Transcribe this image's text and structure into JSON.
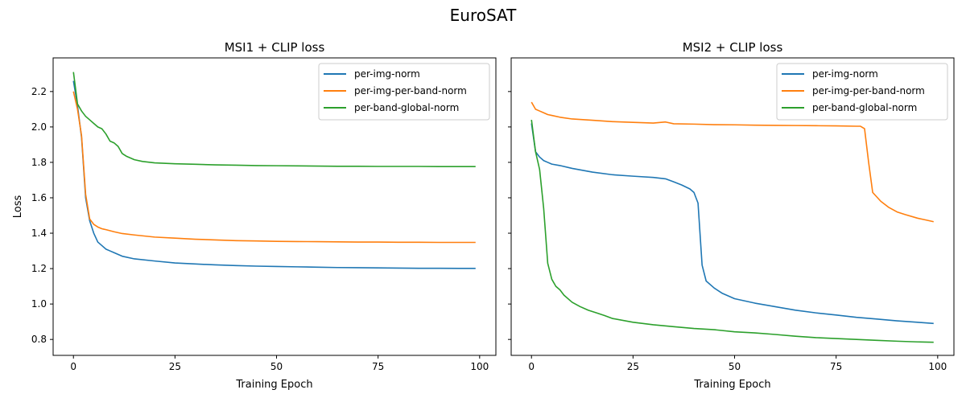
{
  "figure": {
    "suptitle": "EuroSAT"
  },
  "chart_data": [
    {
      "type": "line",
      "title": "MSI1 + CLIP loss",
      "xlabel": "Training Epoch",
      "ylabel": "Loss",
      "xlim": [
        -5,
        104
      ],
      "ylim": [
        0.71,
        2.39
      ],
      "xticks": [
        0,
        25,
        50,
        75,
        100
      ],
      "yticks": [
        0.8,
        1.0,
        1.2,
        1.4,
        1.6,
        1.8,
        2.0,
        2.2
      ],
      "grid": false,
      "legend": "top-right",
      "series": [
        {
          "name": "per-img-norm",
          "color": "#1f77b4",
          "points": [
            [
              0,
              2.26
            ],
            [
              1,
              2.12
            ],
            [
              2,
              1.94
            ],
            [
              3,
              1.6
            ],
            [
              4,
              1.47
            ],
            [
              5,
              1.4
            ],
            [
              6,
              1.35
            ],
            [
              7,
              1.33
            ],
            [
              8,
              1.31
            ],
            [
              9,
              1.3
            ],
            [
              10,
              1.29
            ],
            [
              12,
              1.27
            ],
            [
              15,
              1.255
            ],
            [
              20,
              1.243
            ],
            [
              25,
              1.232
            ],
            [
              30,
              1.226
            ],
            [
              35,
              1.221
            ],
            [
              40,
              1.217
            ],
            [
              45,
              1.214
            ],
            [
              50,
              1.212
            ],
            [
              55,
              1.21
            ],
            [
              60,
              1.208
            ],
            [
              65,
              1.206
            ],
            [
              70,
              1.205
            ],
            [
              75,
              1.204
            ],
            [
              80,
              1.203
            ],
            [
              85,
              1.202
            ],
            [
              90,
              1.202
            ],
            [
              95,
              1.201
            ],
            [
              99,
              1.201
            ]
          ]
        },
        {
          "name": "per-img-per-band-norm",
          "color": "#ff7f0e",
          "points": [
            [
              0,
              2.2
            ],
            [
              1,
              2.1
            ],
            [
              2,
              1.95
            ],
            [
              3,
              1.62
            ],
            [
              4,
              1.48
            ],
            [
              5,
              1.45
            ],
            [
              6,
              1.435
            ],
            [
              7,
              1.425
            ],
            [
              8,
              1.42
            ],
            [
              10,
              1.408
            ],
            [
              12,
              1.398
            ],
            [
              15,
              1.39
            ],
            [
              20,
              1.378
            ],
            [
              25,
              1.372
            ],
            [
              30,
              1.366
            ],
            [
              35,
              1.362
            ],
            [
              40,
              1.358
            ],
            [
              45,
              1.356
            ],
            [
              50,
              1.354
            ],
            [
              55,
              1.353
            ],
            [
              60,
              1.352
            ],
            [
              65,
              1.351
            ],
            [
              70,
              1.35
            ],
            [
              75,
              1.35
            ],
            [
              80,
              1.349
            ],
            [
              85,
              1.349
            ],
            [
              90,
              1.348
            ],
            [
              95,
              1.348
            ],
            [
              99,
              1.348
            ]
          ]
        },
        {
          "name": "per-band-global-norm",
          "color": "#2ca02c",
          "points": [
            [
              0,
              2.31
            ],
            [
              1,
              2.13
            ],
            [
              2,
              2.09
            ],
            [
              3,
              2.06
            ],
            [
              4,
              2.04
            ],
            [
              5,
              2.02
            ],
            [
              6,
              2.0
            ],
            [
              7,
              1.99
            ],
            [
              8,
              1.96
            ],
            [
              9,
              1.92
            ],
            [
              10,
              1.91
            ],
            [
              11,
              1.89
            ],
            [
              12,
              1.85
            ],
            [
              13,
              1.835
            ],
            [
              15,
              1.815
            ],
            [
              17,
              1.805
            ],
            [
              20,
              1.797
            ],
            [
              25,
              1.792
            ],
            [
              30,
              1.789
            ],
            [
              35,
              1.786
            ],
            [
              40,
              1.784
            ],
            [
              45,
              1.782
            ],
            [
              50,
              1.781
            ],
            [
              55,
              1.78
            ],
            [
              60,
              1.779
            ],
            [
              65,
              1.778
            ],
            [
              70,
              1.778
            ],
            [
              75,
              1.777
            ],
            [
              80,
              1.777
            ],
            [
              85,
              1.777
            ],
            [
              90,
              1.776
            ],
            [
              95,
              1.776
            ],
            [
              99,
              1.776
            ]
          ]
        }
      ]
    },
    {
      "type": "line",
      "title": "MSI2 + CLIP loss",
      "xlabel": "Training Epoch",
      "ylabel": "",
      "xlim": [
        -5,
        104
      ],
      "ylim": [
        0.71,
        2.39
      ],
      "xticks": [
        0,
        25,
        50,
        75,
        100
      ],
      "yticks": [
        0.8,
        1.0,
        1.2,
        1.4,
        1.6,
        1.8,
        2.0,
        2.2
      ],
      "grid": false,
      "legend": "top-right",
      "series": [
        {
          "name": "per-img-norm",
          "color": "#1f77b4",
          "points": [
            [
              0,
              2.02
            ],
            [
              1,
              1.86
            ],
            [
              2,
              1.83
            ],
            [
              3,
              1.81
            ],
            [
              4,
              1.8
            ],
            [
              5,
              1.79
            ],
            [
              7,
              1.782
            ],
            [
              10,
              1.766
            ],
            [
              15,
              1.745
            ],
            [
              20,
              1.73
            ],
            [
              25,
              1.722
            ],
            [
              30,
              1.715
            ],
            [
              33,
              1.707
            ],
            [
              35,
              1.69
            ],
            [
              37,
              1.672
            ],
            [
              39,
              1.65
            ],
            [
              40,
              1.63
            ],
            [
              41,
              1.57
            ],
            [
              42,
              1.22
            ],
            [
              43,
              1.13
            ],
            [
              45,
              1.09
            ],
            [
              47,
              1.06
            ],
            [
              50,
              1.03
            ],
            [
              55,
              1.005
            ],
            [
              60,
              0.985
            ],
            [
              65,
              0.965
            ],
            [
              70,
              0.95
            ],
            [
              75,
              0.938
            ],
            [
              80,
              0.925
            ],
            [
              85,
              0.915
            ],
            [
              90,
              0.905
            ],
            [
              95,
              0.897
            ],
            [
              99,
              0.89
            ]
          ]
        },
        {
          "name": "per-img-per-band-norm",
          "color": "#ff7f0e",
          "points": [
            [
              0,
              2.14
            ],
            [
              1,
              2.1
            ],
            [
              2,
              2.09
            ],
            [
              3,
              2.08
            ],
            [
              4,
              2.07
            ],
            [
              5,
              2.065
            ],
            [
              7,
              2.055
            ],
            [
              10,
              2.045
            ],
            [
              15,
              2.038
            ],
            [
              20,
              2.03
            ],
            [
              25,
              2.026
            ],
            [
              30,
              2.022
            ],
            [
              33,
              2.028
            ],
            [
              35,
              2.018
            ],
            [
              40,
              2.016
            ],
            [
              45,
              2.013
            ],
            [
              50,
              2.012
            ],
            [
              55,
              2.01
            ],
            [
              60,
              2.009
            ],
            [
              65,
              2.008
            ],
            [
              70,
              2.007
            ],
            [
              75,
              2.006
            ],
            [
              80,
              2.004
            ],
            [
              81,
              2.004
            ],
            [
              82,
              1.99
            ],
            [
              83,
              1.8
            ],
            [
              84,
              1.63
            ],
            [
              86,
              1.58
            ],
            [
              88,
              1.545
            ],
            [
              90,
              1.52
            ],
            [
              92,
              1.505
            ],
            [
              95,
              1.485
            ],
            [
              97,
              1.475
            ],
            [
              99,
              1.465
            ]
          ]
        },
        {
          "name": "per-band-global-norm",
          "color": "#2ca02c",
          "points": [
            [
              0,
              2.04
            ],
            [
              1,
              1.86
            ],
            [
              2,
              1.76
            ],
            [
              3,
              1.54
            ],
            [
              4,
              1.23
            ],
            [
              5,
              1.14
            ],
            [
              6,
              1.1
            ],
            [
              7,
              1.08
            ],
            [
              8,
              1.05
            ],
            [
              10,
              1.01
            ],
            [
              12,
              0.985
            ],
            [
              14,
              0.965
            ],
            [
              16,
              0.95
            ],
            [
              18,
              0.935
            ],
            [
              20,
              0.918
            ],
            [
              25,
              0.897
            ],
            [
              30,
              0.883
            ],
            [
              35,
              0.872
            ],
            [
              40,
              0.862
            ],
            [
              45,
              0.855
            ],
            [
              50,
              0.843
            ],
            [
              55,
              0.837
            ],
            [
              60,
              0.828
            ],
            [
              65,
              0.818
            ],
            [
              70,
              0.81
            ],
            [
              75,
              0.805
            ],
            [
              80,
              0.8
            ],
            [
              85,
              0.795
            ],
            [
              90,
              0.79
            ],
            [
              95,
              0.786
            ],
            [
              99,
              0.784
            ]
          ]
        }
      ]
    }
  ]
}
